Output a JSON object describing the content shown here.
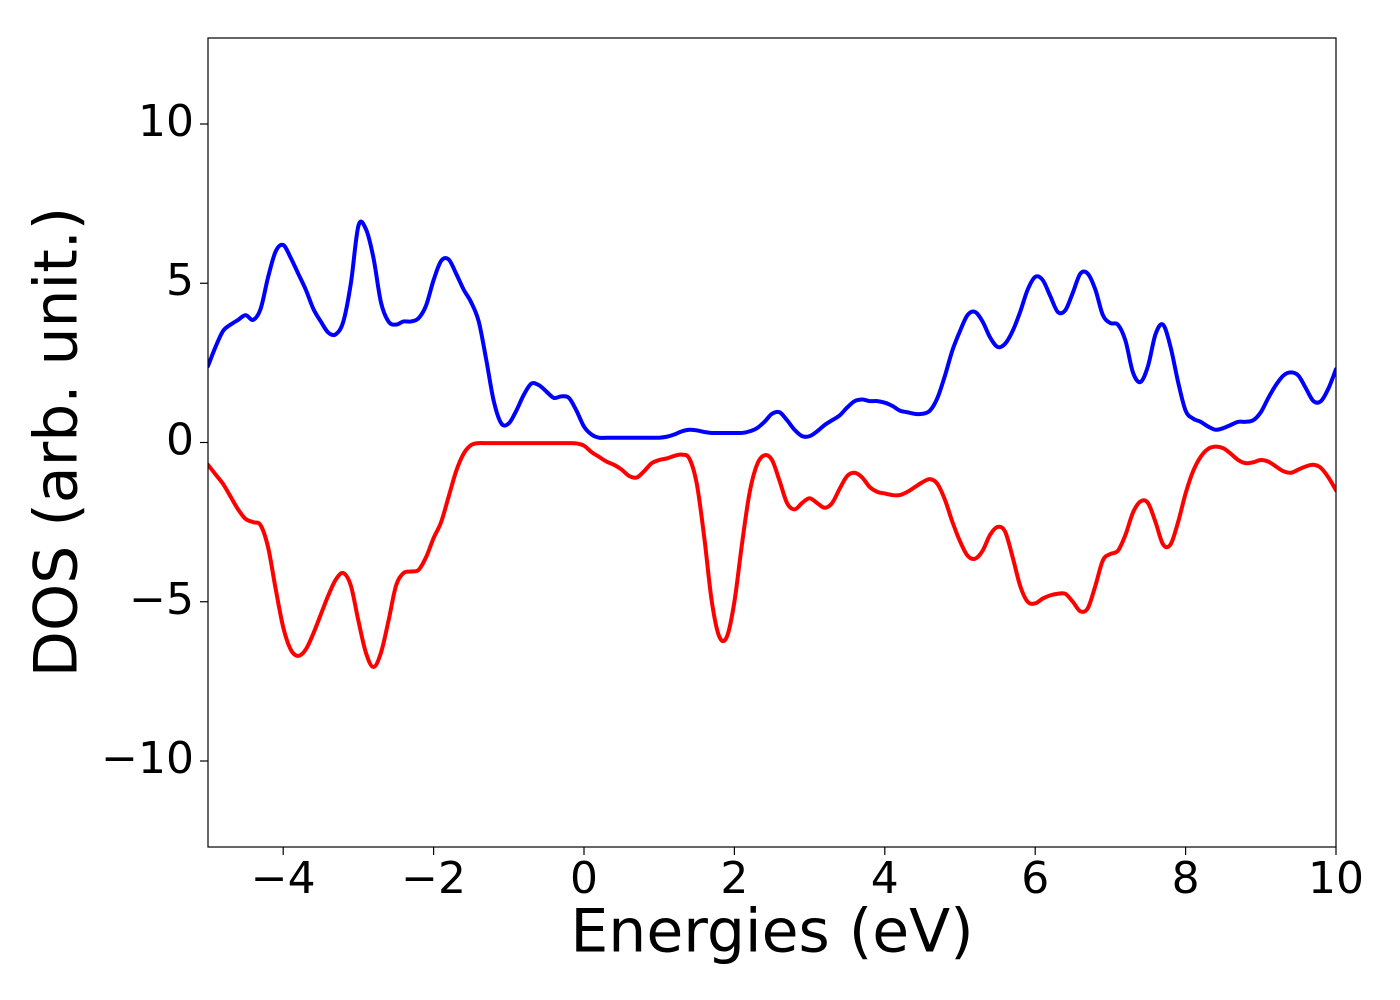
{
  "chart_data": {
    "type": "line",
    "xlabel": "Energies (eV)",
    "ylabel": "DOS (arb. unit.)",
    "xlim": [
      -5,
      10
    ],
    "ylim": [
      -12.7,
      12.7
    ],
    "xticks": [
      {
        "value": -4,
        "label": "−4"
      },
      {
        "value": -2,
        "label": "−2"
      },
      0,
      2,
      4,
      6,
      8,
      10
    ],
    "yticks": [
      {
        "value": -10,
        "label": "−10"
      },
      {
        "value": -5,
        "label": "−5"
      },
      0,
      5,
      10
    ],
    "grid": false,
    "x": [
      -5,
      -4.9,
      -4.8,
      -4.7,
      -4.6,
      -4.5,
      -4.4,
      -4.3,
      -4.2,
      -4.1,
      -4,
      -3.9,
      -3.8,
      -3.7,
      -3.6,
      -3.5,
      -3.4,
      -3.3,
      -3.2,
      -3.1,
      -3,
      -2.9,
      -2.8,
      -2.7,
      -2.6,
      -2.5,
      -2.4,
      -2.3,
      -2.2,
      -2.1,
      -2,
      -1.9,
      -1.8,
      -1.7,
      -1.6,
      -1.5,
      -1.4,
      -1.3,
      -1.2,
      -1.1,
      -1,
      -0.9,
      -0.8,
      -0.7,
      -0.6,
      -0.5,
      -0.4,
      -0.3,
      -0.2,
      -0.1,
      0,
      0.1,
      0.2,
      0.3,
      0.4,
      0.5,
      0.6,
      0.7,
      0.8,
      0.9,
      1,
      1.1,
      1.2,
      1.3,
      1.4,
      1.5,
      1.6,
      1.7,
      1.8,
      1.9,
      2,
      2.1,
      2.2,
      2.3,
      2.4,
      2.5,
      2.6,
      2.7,
      2.8,
      2.9,
      3,
      3.1,
      3.2,
      3.3,
      3.4,
      3.5,
      3.6,
      3.7,
      3.8,
      3.9,
      4,
      4.1,
      4.2,
      4.3,
      4.4,
      4.5,
      4.6,
      4.7,
      4.8,
      4.9,
      5,
      5.1,
      5.2,
      5.3,
      5.4,
      5.5,
      5.6,
      5.7,
      5.8,
      5.9,
      6,
      6.1,
      6.2,
      6.3,
      6.4,
      6.5,
      6.6,
      6.7,
      6.8,
      6.9,
      7,
      7.1,
      7.2,
      7.3,
      7.4,
      7.5,
      7.6,
      7.7,
      7.8,
      7.9,
      8,
      8.1,
      8.2,
      8.3,
      8.4,
      8.5,
      8.6,
      8.7,
      8.8,
      8.9,
      9,
      9.1,
      9.2,
      9.3,
      9.4,
      9.5,
      9.6,
      9.7,
      9.8,
      9.9,
      10
    ],
    "series": [
      {
        "color": "#0000ff",
        "values": [
          2.4,
          3.0,
          3.5,
          3.7,
          3.85,
          4.0,
          3.85,
          4.2,
          5.2,
          6.0,
          6.2,
          5.8,
          5.3,
          4.8,
          4.2,
          3.8,
          3.45,
          3.4,
          3.8,
          5.0,
          6.8,
          6.7,
          5.8,
          4.4,
          3.8,
          3.7,
          3.8,
          3.8,
          3.9,
          4.3,
          5.1,
          5.7,
          5.75,
          5.3,
          4.8,
          4.4,
          3.8,
          2.6,
          1.3,
          0.6,
          0.6,
          1.0,
          1.5,
          1.85,
          1.8,
          1.6,
          1.4,
          1.45,
          1.4,
          1.0,
          0.5,
          0.25,
          0.15,
          0.15,
          0.15,
          0.15,
          0.15,
          0.15,
          0.15,
          0.15,
          0.15,
          0.18,
          0.25,
          0.35,
          0.4,
          0.38,
          0.33,
          0.3,
          0.3,
          0.3,
          0.3,
          0.3,
          0.35,
          0.45,
          0.65,
          0.9,
          0.95,
          0.7,
          0.4,
          0.2,
          0.2,
          0.35,
          0.55,
          0.7,
          0.85,
          1.1,
          1.3,
          1.35,
          1.3,
          1.3,
          1.25,
          1.15,
          1.0,
          0.95,
          0.9,
          0.9,
          1.0,
          1.4,
          2.1,
          2.9,
          3.5,
          4.0,
          4.1,
          3.8,
          3.3,
          3.0,
          3.1,
          3.5,
          4.1,
          4.8,
          5.2,
          5.1,
          4.6,
          4.1,
          4.15,
          4.7,
          5.3,
          5.3,
          4.8,
          4.0,
          3.75,
          3.7,
          3.2,
          2.2,
          1.9,
          2.4,
          3.4,
          3.7,
          3.0,
          1.9,
          1.0,
          0.75,
          0.65,
          0.5,
          0.4,
          0.45,
          0.55,
          0.65,
          0.65,
          0.7,
          0.95,
          1.4,
          1.8,
          2.1,
          2.2,
          2.1,
          1.7,
          1.3,
          1.3,
          1.7,
          2.3
        ]
      },
      {
        "color": "#ff0000",
        "values": [
          -0.7,
          -1.0,
          -1.3,
          -1.7,
          -2.1,
          -2.4,
          -2.5,
          -2.6,
          -3.3,
          -4.6,
          -5.8,
          -6.5,
          -6.7,
          -6.5,
          -6.0,
          -5.4,
          -4.8,
          -4.3,
          -4.1,
          -4.5,
          -5.6,
          -6.6,
          -7.05,
          -6.6,
          -5.6,
          -4.5,
          -4.1,
          -4.05,
          -4.0,
          -3.6,
          -3.0,
          -2.5,
          -1.7,
          -0.9,
          -0.35,
          -0.08,
          -0.02,
          -0.02,
          -0.02,
          -0.02,
          -0.02,
          -0.02,
          -0.02,
          -0.02,
          -0.02,
          -0.02,
          -0.02,
          -0.02,
          -0.02,
          -0.03,
          -0.1,
          -0.3,
          -0.45,
          -0.6,
          -0.7,
          -0.85,
          -1.05,
          -1.1,
          -0.9,
          -0.65,
          -0.55,
          -0.5,
          -0.42,
          -0.38,
          -0.5,
          -1.3,
          -3.0,
          -5.0,
          -6.1,
          -6.1,
          -5.0,
          -3.2,
          -1.6,
          -0.7,
          -0.4,
          -0.55,
          -1.2,
          -1.9,
          -2.1,
          -1.9,
          -1.75,
          -1.9,
          -2.05,
          -1.9,
          -1.45,
          -1.05,
          -0.95,
          -1.1,
          -1.4,
          -1.55,
          -1.6,
          -1.65,
          -1.65,
          -1.55,
          -1.4,
          -1.25,
          -1.15,
          -1.3,
          -1.8,
          -2.5,
          -3.1,
          -3.55,
          -3.65,
          -3.4,
          -2.9,
          -2.65,
          -2.8,
          -3.6,
          -4.5,
          -5.0,
          -5.05,
          -4.9,
          -4.8,
          -4.75,
          -4.75,
          -5.0,
          -5.3,
          -5.2,
          -4.5,
          -3.7,
          -3.5,
          -3.4,
          -2.9,
          -2.2,
          -1.85,
          -1.9,
          -2.5,
          -3.2,
          -3.2,
          -2.5,
          -1.6,
          -0.9,
          -0.45,
          -0.2,
          -0.13,
          -0.18,
          -0.35,
          -0.55,
          -0.65,
          -0.62,
          -0.55,
          -0.6,
          -0.75,
          -0.9,
          -0.95,
          -0.85,
          -0.75,
          -0.7,
          -0.8,
          -1.1,
          -1.5
        ]
      }
    ]
  }
}
